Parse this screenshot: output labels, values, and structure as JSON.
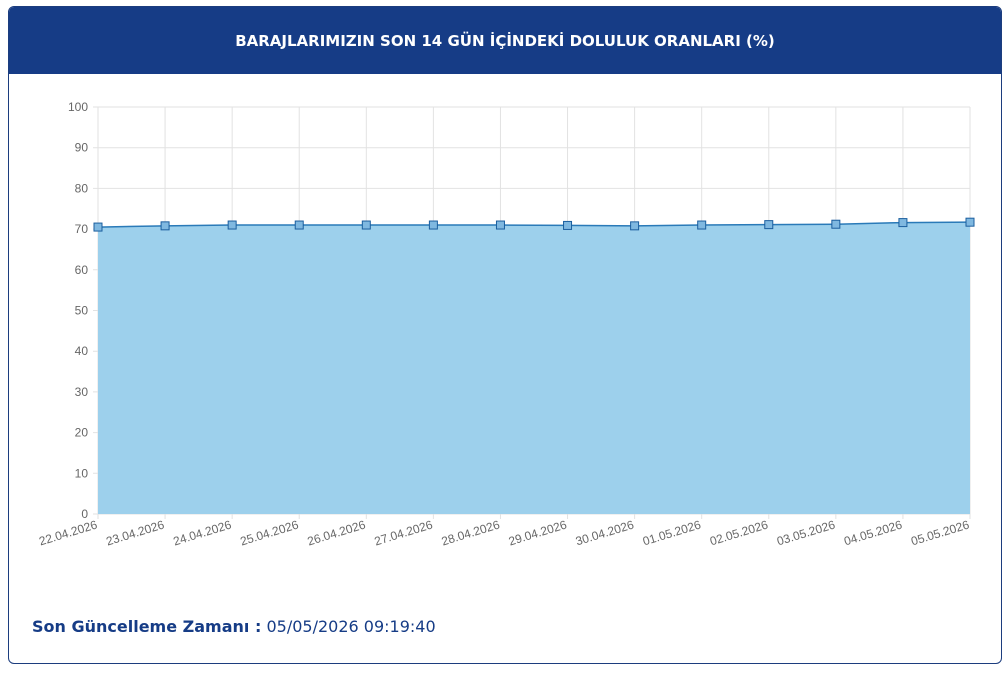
{
  "chart_data": {
    "type": "area",
    "title": "BARAJLARIMIZIN SON 14 GÜN İÇİNDEKİ DOLULUK ORANLARI (%)",
    "categories": [
      "22.04.2026",
      "23.04.2026",
      "24.04.2026",
      "25.04.2026",
      "26.04.2026",
      "27.04.2026",
      "28.04.2026",
      "29.04.2026",
      "30.04.2026",
      "01.05.2026",
      "02.05.2026",
      "03.05.2026",
      "04.05.2026",
      "05.05.2026"
    ],
    "values": [
      70.5,
      70.8,
      71.0,
      71.0,
      71.0,
      71.0,
      71.0,
      70.9,
      70.8,
      71.0,
      71.1,
      71.2,
      71.6,
      71.7
    ],
    "color": "#2a7ab8",
    "fill_color": "#9dd0ec",
    "ylim": [
      0,
      100
    ],
    "yticks": [
      0,
      10,
      20,
      30,
      40,
      50,
      60,
      70,
      80,
      90,
      100
    ],
    "grid": true
  },
  "footer": {
    "label": "Son Güncelleme Zamanı :",
    "value": "05/05/2026 09:19:40"
  }
}
